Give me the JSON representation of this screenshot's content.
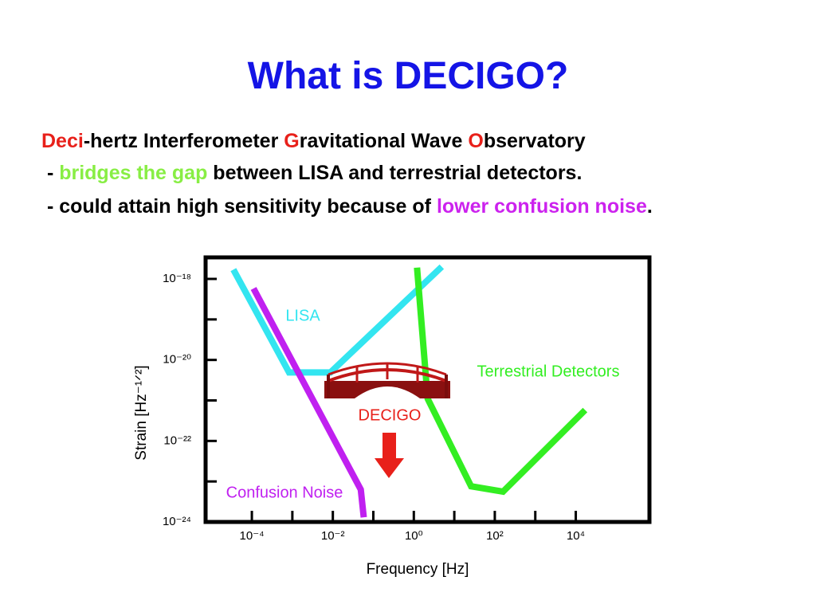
{
  "slide": {
    "title": "What is DECIGO?",
    "body": [
      [
        {
          "text": "Deci",
          "color": "#e8201a"
        },
        {
          "text": "-hertz Interferometer ",
          "color": "#000000"
        },
        {
          "text": "G",
          "color": "#e8201a"
        },
        {
          "text": "ravitational Wave ",
          "color": "#000000"
        },
        {
          "text": "O",
          "color": "#e8201a"
        },
        {
          "text": "bservatory",
          "color": "#000000"
        }
      ],
      [
        {
          "text": " - ",
          "color": "#000000"
        },
        {
          "text": "bridges the gap",
          "color": "#88ee44"
        },
        {
          "text": " between LISA and terrestrial detectors.",
          "color": "#000000"
        }
      ],
      [
        {
          "text": " - could attain high sensitivity because of ",
          "color": "#000000"
        },
        {
          "text": "lower confusion noise",
          "color": "#cc22ee"
        },
        {
          "text": ".",
          "color": "#000000"
        }
      ]
    ]
  },
  "chart_data": {
    "type": "line",
    "x_label": "Frequency [Hz]",
    "y_label": "Strain [Hz⁻¹ᐟ²]",
    "log_x": true,
    "log_y": true,
    "xlim": [
      7.2e-06,
      660000.0
    ],
    "ylim": [
      1e-24,
      3.4e-18
    ],
    "xticks": [
      {
        "value": 0.0001,
        "label": "10⁻⁴"
      },
      {
        "value": 0.01,
        "label": "10⁻²"
      },
      {
        "value": 1,
        "label": "10⁰"
      },
      {
        "value": 100,
        "label": "10²"
      },
      {
        "value": 10000,
        "label": "10⁴"
      }
    ],
    "xminor_ticks": [
      0.001,
      0.1,
      10,
      1000
    ],
    "yticks": [
      {
        "value": 1e-18,
        "label": "10⁻¹⁸"
      },
      {
        "value": 1e-20,
        "label": "10⁻²⁰"
      },
      {
        "value": 1e-22,
        "label": "10⁻²²"
      },
      {
        "value": 1e-24,
        "label": "10⁻²⁴"
      }
    ],
    "yminor_ticks": [
      1e-19,
      1e-21,
      1e-23
    ],
    "series": [
      {
        "name": "LISA",
        "color": "#33e5f0",
        "x": [
          3.5e-05,
          0.00083,
          0.0087,
          4.9
        ],
        "values": [
          1.7e-18,
          4.9e-21,
          4.9e-21,
          2e-18
        ]
      },
      {
        "name": "Confusion Noise",
        "color": "#c020f0",
        "x": [
          0.00011,
          0.049,
          0.058
        ],
        "values": [
          5.8e-19,
          6.3e-24,
          1.3e-24
        ]
      },
      {
        "name": "Terrestrial Detectors",
        "color": "#33ee22",
        "x": [
          1.2,
          2.2,
          26,
          160,
          17000
        ],
        "values": [
          1.9e-18,
          1.1e-21,
          7.6e-24,
          5.6e-24,
          5.8e-22
        ]
      }
    ],
    "annotation": {
      "text": "DECIGO",
      "color": "#e8201a"
    }
  }
}
